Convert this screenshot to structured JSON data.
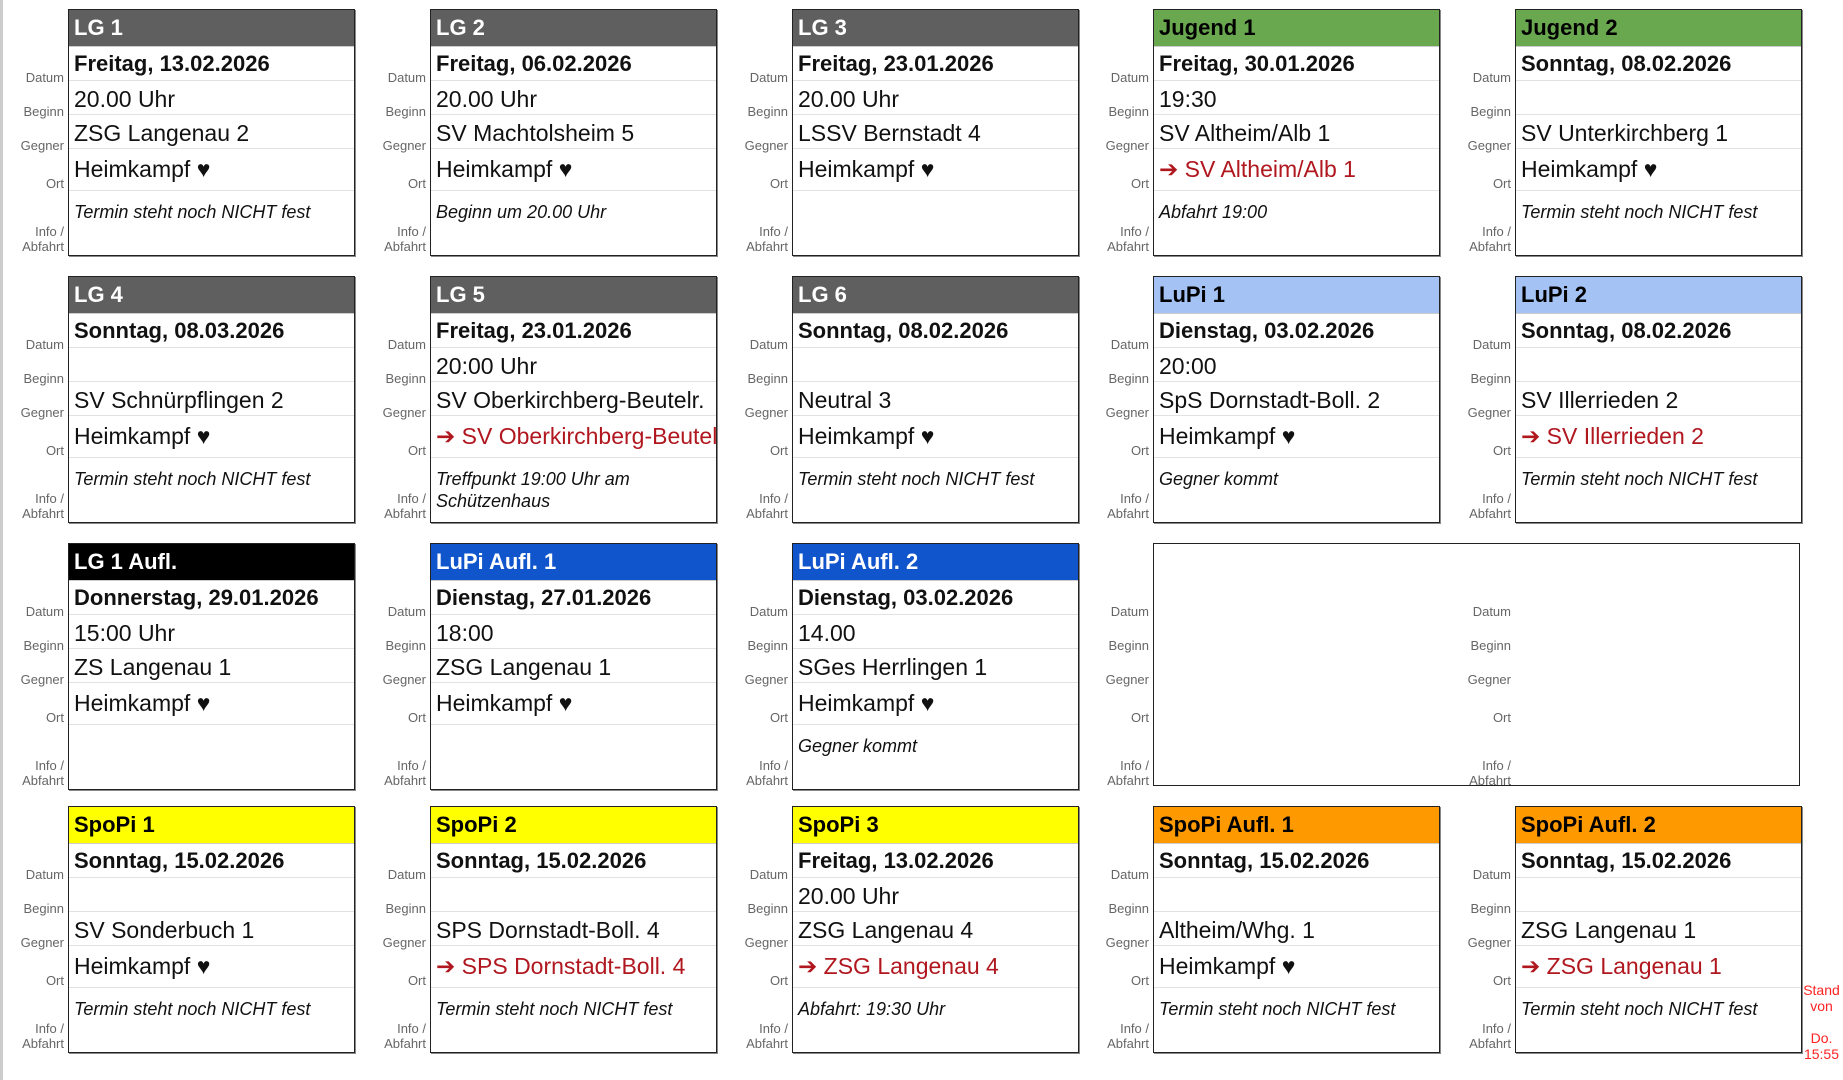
{
  "labels": {
    "datum": "Datum",
    "beginn": "Beginn",
    "gegner": "Gegner",
    "ort": "Ort",
    "info1": "Info /",
    "info2": "Abfahrt"
  },
  "colors": {
    "gray": "#5f5f5f",
    "green": "#6aa84f",
    "lightblue": "#a4c2f4",
    "blue": "#1155cc",
    "black": "#000000",
    "yellow": "#ffff00",
    "orange": "#ff9900",
    "away_text": "#b0171f"
  },
  "cards": [
    {
      "team": "LG 1",
      "header_color": "gray",
      "header_text": "#ffffff",
      "datum": "Freitag, 13.02.2026",
      "beginn": "20.00 Uhr",
      "gegner": "ZSG Langenau 2",
      "ort": "Heimkampf ♥",
      "away": false,
      "info": "Termin steht noch NICHT fest"
    },
    {
      "team": "LG 2",
      "header_color": "gray",
      "header_text": "#ffffff",
      "datum": "Freitag, 06.02.2026",
      "beginn": "20.00 Uhr",
      "gegner": "SV Machtolsheim 5",
      "ort": "Heimkampf ♥",
      "away": false,
      "info": "Beginn um 20.00 Uhr"
    },
    {
      "team": "LG 3",
      "header_color": "gray",
      "header_text": "#ffffff",
      "datum": "Freitag, 23.01.2026",
      "beginn": "20.00 Uhr",
      "gegner": "LSSV Bernstadt 4",
      "ort": "Heimkampf ♥",
      "away": false,
      "info": ""
    },
    {
      "team": "Jugend 1",
      "header_color": "green",
      "header_text": "#000000",
      "datum": "Freitag, 30.01.2026",
      "beginn": "19:30",
      "gegner": "SV Altheim/Alb 1",
      "ort": "➔ SV Altheim/Alb 1",
      "away": true,
      "info": "Abfahrt 19:00"
    },
    {
      "team": "Jugend 2",
      "header_color": "green",
      "header_text": "#000000",
      "datum": "Sonntag, 08.02.2026",
      "beginn": "",
      "gegner": "SV Unterkirchberg 1",
      "ort": "Heimkampf ♥",
      "away": false,
      "info": "Termin steht noch NICHT fest"
    },
    {
      "team": "LG 4",
      "header_color": "gray",
      "header_text": "#ffffff",
      "datum": "Sonntag, 08.03.2026",
      "beginn": "",
      "gegner": "SV Schnürpflingen 2",
      "ort": "Heimkampf ♥",
      "away": false,
      "info": "Termin steht noch NICHT fest"
    },
    {
      "team": "LG 5",
      "header_color": "gray",
      "header_text": "#ffffff",
      "datum": "Freitag, 23.01.2026",
      "beginn": "20:00 Uhr",
      "gegner": "SV Oberkirchberg-Beutelr.",
      "ort": "➔ SV Oberkirchberg-Beutelr.",
      "away": true,
      "info": "Treffpunkt 19:00 Uhr am Schützenhaus"
    },
    {
      "team": "LG 6",
      "header_color": "gray",
      "header_text": "#ffffff",
      "datum": "Sonntag, 08.02.2026",
      "beginn": "",
      "gegner": "Neutral 3",
      "ort": "Heimkampf ♥",
      "away": false,
      "info": "Termin steht noch NICHT fest"
    },
    {
      "team": "LuPi 1",
      "header_color": "lightblue",
      "header_text": "#000000",
      "datum": "Dienstag, 03.02.2026",
      "beginn": "20:00",
      "gegner": "SpS Dornstadt-Boll. 2",
      "ort": "Heimkampf ♥",
      "away": false,
      "info": "Gegner kommt"
    },
    {
      "team": "LuPi 2",
      "header_color": "lightblue",
      "header_text": "#000000",
      "datum": "Sonntag, 08.02.2026",
      "beginn": "",
      "gegner": "SV Illerrieden 2",
      "ort": "➔ SV Illerrieden 2",
      "away": true,
      "info": "Termin steht noch NICHT fest"
    },
    {
      "team": "LG 1 Aufl.",
      "header_color": "black",
      "header_text": "#ffffff",
      "datum": "Donnerstag, 29.01.2026",
      "beginn": "15:00 Uhr",
      "gegner": "ZS Langenau 1",
      "ort": "Heimkampf ♥",
      "away": false,
      "info": ""
    },
    {
      "team": "LuPi Aufl. 1",
      "header_color": "blue",
      "header_text": "#ffffff",
      "datum": "Dienstag, 27.01.2026",
      "beginn": "18:00",
      "gegner": "ZSG Langenau 1",
      "ort": "Heimkampf ♥",
      "away": false,
      "info": ""
    },
    {
      "team": "LuPi Aufl. 2",
      "header_color": "blue",
      "header_text": "#ffffff",
      "datum": "Dienstag, 03.02.2026",
      "beginn": "14.00",
      "gegner": "SGes Herrlingen 1",
      "ort": "Heimkampf ♥",
      "away": false,
      "info": "Gegner kommt"
    },
    null,
    null,
    {
      "team": "SpoPi 1",
      "header_color": "yellow",
      "header_text": "#000000",
      "datum": "Sonntag, 15.02.2026",
      "beginn": "",
      "gegner": "SV Sonderbuch 1",
      "ort": "Heimkampf ♥",
      "away": false,
      "info": "Termin steht noch NICHT fest"
    },
    {
      "team": "SpoPi 2",
      "header_color": "yellow",
      "header_text": "#000000",
      "datum": "Sonntag, 15.02.2026",
      "beginn": "",
      "gegner": "SPS Dornstadt-Boll. 4",
      "ort": "➔ SPS Dornstadt-Boll. 4",
      "away": true,
      "info": "Termin steht noch NICHT fest"
    },
    {
      "team": "SpoPi 3",
      "header_color": "yellow",
      "header_text": "#000000",
      "datum": "Freitag, 13.02.2026",
      "beginn": "20.00 Uhr",
      "gegner": "ZSG Langenau 4",
      "ort": "➔ ZSG Langenau 4",
      "away": true,
      "info": "Abfahrt: 19:30 Uhr"
    },
    {
      "team": "SpoPi Aufl. 1",
      "header_color": "orange",
      "header_text": "#000000",
      "datum": "Sonntag, 15.02.2026",
      "beginn": "",
      "gegner": "Altheim/Whg. 1",
      "ort": "Heimkampf ♥",
      "away": false,
      "info": "Termin steht noch NICHT fest"
    },
    {
      "team": "SpoPi Aufl. 2",
      "header_color": "orange",
      "header_text": "#000000",
      "datum": "Sonntag, 15.02.2026",
      "beginn": "",
      "gegner": "ZSG Langenau 1",
      "ort": "➔ ZSG Langenau 1",
      "away": true,
      "info": "Termin steht noch NICHT fest"
    }
  ],
  "stand": {
    "line1": "Stand",
    "line2": "von",
    "line3": "Do.",
    "line4": "15:55"
  }
}
